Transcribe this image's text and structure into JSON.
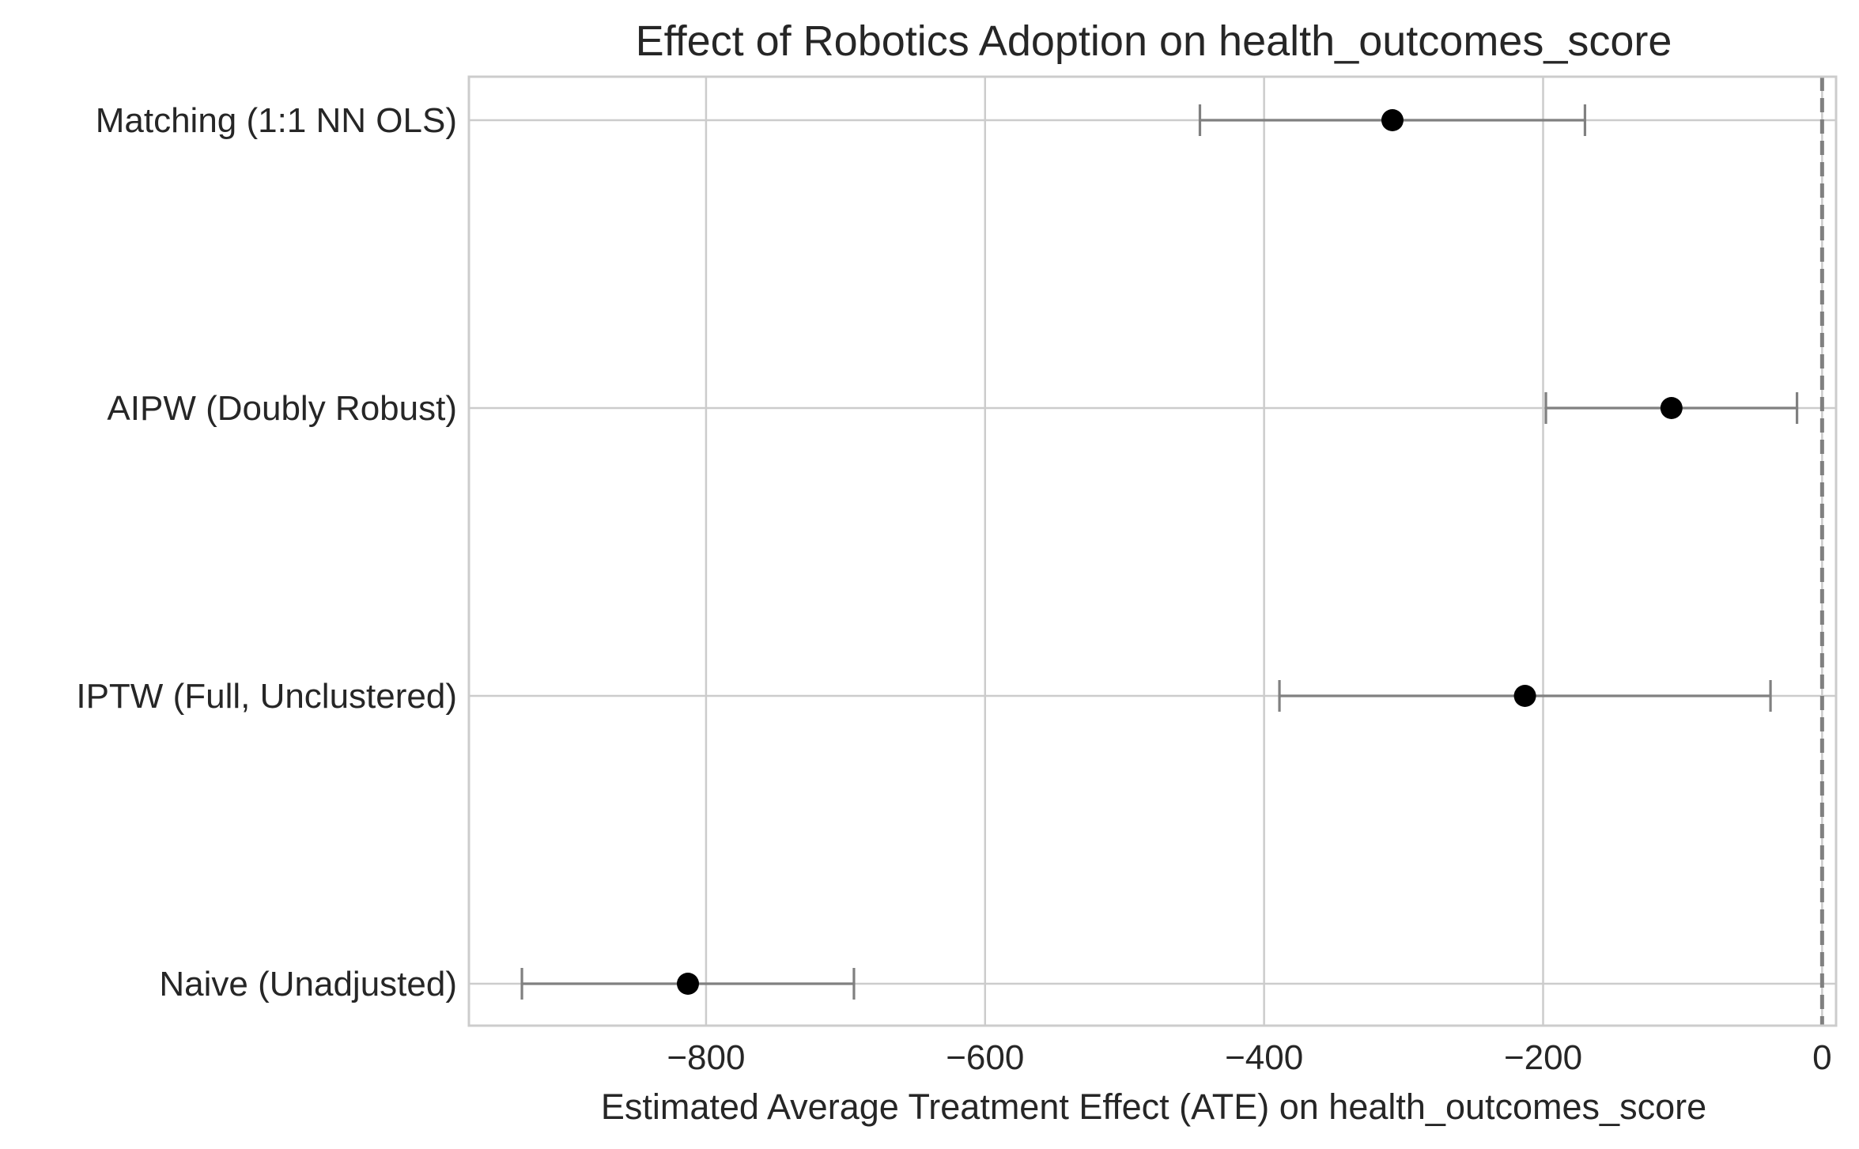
{
  "chart_data": {
    "type": "scatter",
    "title": "Effect of Robotics Adoption on health_outcomes_score",
    "xlabel": "Estimated Average Treatment Effect (ATE) on health_outcomes_score",
    "ylabel": "",
    "xlim": [
      -970,
      10
    ],
    "x_ticks": [
      -800,
      -600,
      -400,
      -200,
      0
    ],
    "x_tick_labels": [
      "−800",
      "−600",
      "−400",
      "−200",
      "0"
    ],
    "grid": true,
    "reference_line": {
      "x": 0,
      "style": "dashed",
      "color": "#808080"
    },
    "series": [
      {
        "categories": [
          "Matching (1:1 NN OLS)",
          "AIPW (Doubly Robust)",
          "IPTW (Full, Unclustered)",
          "Naive (Unadjusted)"
        ],
        "estimates": [
          -308,
          -108,
          -213,
          -813
        ],
        "ci_lower": [
          -446,
          -198,
          -389,
          -932
        ],
        "ci_upper": [
          -170,
          -18,
          -37,
          -694
        ]
      }
    ],
    "point_color": "#000000",
    "errorbar_color": "#808080"
  }
}
